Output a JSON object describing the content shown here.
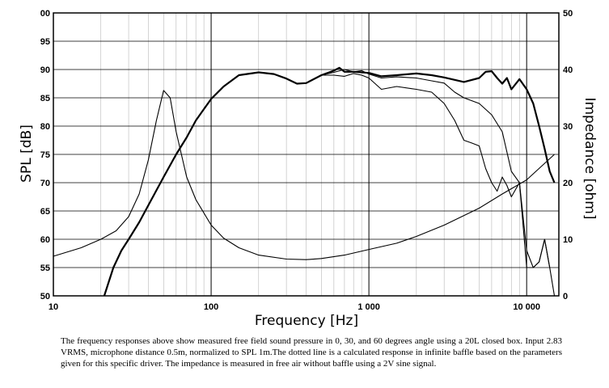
{
  "chart_data": {
    "type": "line",
    "xlabel": "Frequency [Hz]",
    "ylabel": "SPL [dB]",
    "y2label": "Impedance [ohm]",
    "xscale": "log",
    "xlim": [
      10,
      16000
    ],
    "ylim": [
      50,
      100
    ],
    "y2lim": [
      0,
      50
    ],
    "grid": true,
    "x_ticks": [
      {
        "value": 10,
        "label": "10"
      },
      {
        "value": 100,
        "label": "100"
      },
      {
        "value": 1000,
        "label": "1 000"
      },
      {
        "value": 10000,
        "label": "10 000"
      }
    ],
    "y_ticks": [
      "50",
      "55",
      "60",
      "65",
      "70",
      "75",
      "80",
      "85",
      "90",
      "95",
      "00"
    ],
    "y2_ticks": [
      "0",
      "10",
      "20",
      "30",
      "40",
      "50"
    ],
    "series": [
      {
        "axis": "left",
        "width": 2.2,
        "x": [
          21,
          24,
          27,
          30,
          35,
          40,
          50,
          60,
          70,
          80,
          90,
          100,
          120,
          150,
          200,
          250,
          300,
          350,
          400,
          500,
          600,
          650,
          700,
          800,
          1000,
          1200,
          1500,
          2000,
          2500,
          3000,
          4000,
          5000,
          5500,
          6000,
          6500,
          7000,
          7500,
          8000,
          9000,
          10000,
          11000,
          12000,
          13000,
          14000,
          15000
        ],
        "y": [
          50,
          55,
          58,
          60,
          63,
          66,
          71,
          75,
          78,
          81,
          83,
          84.8,
          87,
          89,
          89.5,
          89.2,
          88.4,
          87.5,
          87.6,
          89,
          89.8,
          90.3,
          89.6,
          89.6,
          89.4,
          88.8,
          89,
          89.3,
          89,
          88.6,
          87.8,
          88.5,
          89.6,
          89.7,
          88.5,
          87.5,
          88.5,
          86.5,
          88.3,
          86.5,
          84,
          80,
          76,
          72,
          70
        ]
      },
      {
        "axis": "left",
        "width": 1.1,
        "x": [
          500,
          600,
          700,
          800,
          900,
          1000,
          1200,
          1500,
          2000,
          2500,
          3000,
          3500,
          4000,
          5000,
          6000,
          7000,
          8000,
          9000,
          10000,
          11000,
          12000,
          13000,
          14000,
          15000
        ],
        "y": [
          89,
          89.5,
          90,
          89.6,
          89.8,
          89.2,
          88.5,
          88.7,
          88.5,
          88,
          87.6,
          86,
          85,
          84,
          82,
          79,
          72,
          70,
          58,
          55,
          56,
          60,
          55,
          50
        ]
      },
      {
        "axis": "left",
        "width": 1.1,
        "x": [
          500,
          600,
          700,
          800,
          900,
          1000,
          1200,
          1500,
          2000,
          2500,
          3000,
          3500,
          4000,
          4500,
          5000,
          5500,
          6000,
          6500,
          7000,
          7500,
          8000,
          9000,
          10000,
          11000,
          12000,
          13000,
          14000
        ],
        "y": [
          89,
          89,
          88.8,
          89.3,
          89,
          88.5,
          86.5,
          87,
          86.5,
          86,
          84,
          81,
          77.5,
          77,
          76.5,
          72.5,
          70,
          68.5,
          71,
          69.5,
          67.5,
          70,
          55,
          55,
          56,
          60,
          55
        ]
      },
      {
        "axis": "right",
        "width": 1.1,
        "x": [
          10,
          15,
          20,
          25,
          30,
          35,
          40,
          45,
          50,
          55,
          60,
          70,
          80,
          100,
          120,
          150,
          200,
          300,
          400,
          500,
          700,
          1000,
          1500,
          2000,
          3000,
          5000,
          7000,
          10000,
          15000
        ],
        "y": [
          7,
          8.5,
          10,
          11.5,
          14,
          18,
          24,
          31,
          36.3,
          35,
          29,
          21,
          17,
          12.5,
          10.2,
          8.5,
          7.2,
          6.5,
          6.4,
          6.6,
          7.2,
          8.2,
          9.3,
          10.5,
          12.5,
          15.5,
          18,
          20.5,
          25
        ]
      }
    ]
  },
  "caption": "The frequency responses above show measured free field sound pressure in 0, 30, and 60 degrees angle using a 20L closed box. Input 2.83 VRMS, microphone distance 0.5m, normalized to SPL 1m.The dotted line is a calculated response in infinite baffle based on the parameters given for this specific driver. The impedance is measured in free air without baffle using a 2V sine signal."
}
